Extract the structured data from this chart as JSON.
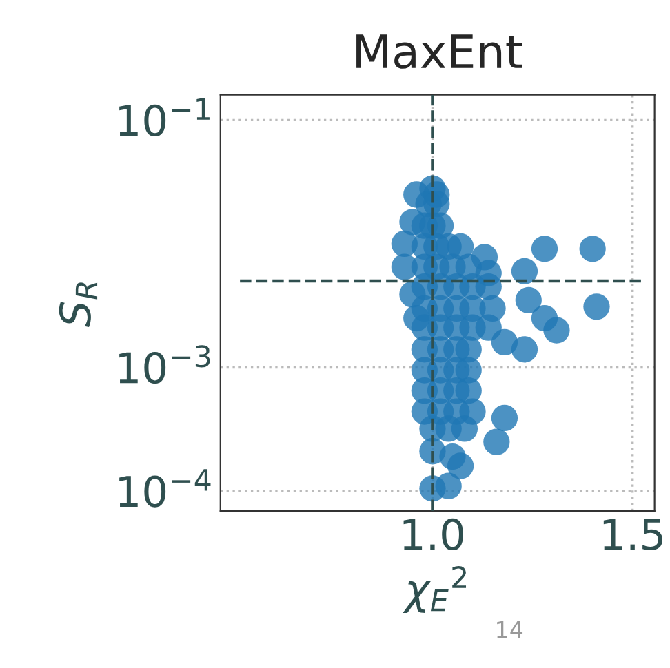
{
  "chart_data": {
    "type": "scatter",
    "title": "MaxEnt",
    "xlabel": "χ$_{E}$$^{2}$",
    "ylabel": "S$_{R}$",
    "annotations": [
      "14"
    ],
    "log": "y",
    "xlim": [
      0.47,
      1.555
    ],
    "ylim": [
      6.9e-05,
      0.16
    ],
    "xticks": [
      {
        "value": 1.0,
        "label": "1.0"
      },
      1.5
    ],
    "yticks": [
      {
        "value": 0.0001,
        "label": "10$^{−4}$"
      },
      {
        "value": 0.001,
        "label": "10$^{−3}$"
      },
      {
        "value": 0.1,
        "label": "10$^{−1}$"
      }
    ],
    "grid": true,
    "marker": "circle",
    "ref_lines": [
      {
        "axis": "x",
        "value": 1.0,
        "color": "#2f4f4f",
        "line_style": "dashed"
      },
      {
        "axis": "y",
        "value": 0.005,
        "color": "#2f4f4f",
        "line_style": "dashed"
      }
    ],
    "series": [
      {
        "color": "#1f77b4",
        "x": [
          1.28,
          1.4,
          1.41,
          1.31,
          1.28,
          1.24,
          1.23,
          1.13,
          1.14,
          1.23,
          1.18,
          1.16,
          1.18,
          1.0,
          1.05,
          1.07,
          1.0,
          1.04,
          0.96,
          0.95,
          0.93,
          0.93,
          0.95,
          0.96,
          1.0,
          1.01,
          0.99,
          1.01,
          0.98,
          1.0,
          1.02,
          0.98,
          1.01,
          1.04,
          1.07,
          0.98,
          1.01,
          1.05,
          1.09,
          0.98,
          1.02,
          1.06,
          1.1,
          1.14,
          0.98,
          1.02,
          1.06,
          1.1,
          1.15,
          0.98,
          1.02,
          1.06,
          1.1,
          1.14,
          0.98,
          1.02,
          1.06,
          1.09,
          0.98,
          1.02,
          1.06,
          1.09,
          0.98,
          1.02,
          1.06,
          1.09,
          0.98,
          1.02,
          1.06,
          1.1,
          1.0,
          1.04,
          1.08
        ],
        "values": [
          0.0091,
          0.0091,
          0.0031,
          0.002,
          0.0025,
          0.0035,
          0.006,
          0.0078,
          0.0058,
          0.0014,
          0.0016,
          0.00025,
          0.00039,
          0.00021,
          0.00019,
          0.00016,
          0.000105,
          0.00011,
          0.025,
          0.015,
          0.01,
          0.0065,
          0.0039,
          0.0025,
          0.028,
          0.025,
          0.021,
          0.021,
          0.014,
          0.014,
          0.014,
          0.0095,
          0.0095,
          0.0095,
          0.0095,
          0.0065,
          0.0065,
          0.0065,
          0.0065,
          0.0045,
          0.0045,
          0.0045,
          0.0045,
          0.0045,
          0.003,
          0.003,
          0.003,
          0.003,
          0.003,
          0.0021,
          0.0021,
          0.0021,
          0.0021,
          0.0021,
          0.0014,
          0.0014,
          0.0014,
          0.0014,
          0.00095,
          0.00095,
          0.00095,
          0.00095,
          0.00065,
          0.00065,
          0.00065,
          0.00065,
          0.00044,
          0.00044,
          0.00044,
          0.00044,
          0.00032,
          0.00032,
          0.00032
        ]
      }
    ]
  }
}
